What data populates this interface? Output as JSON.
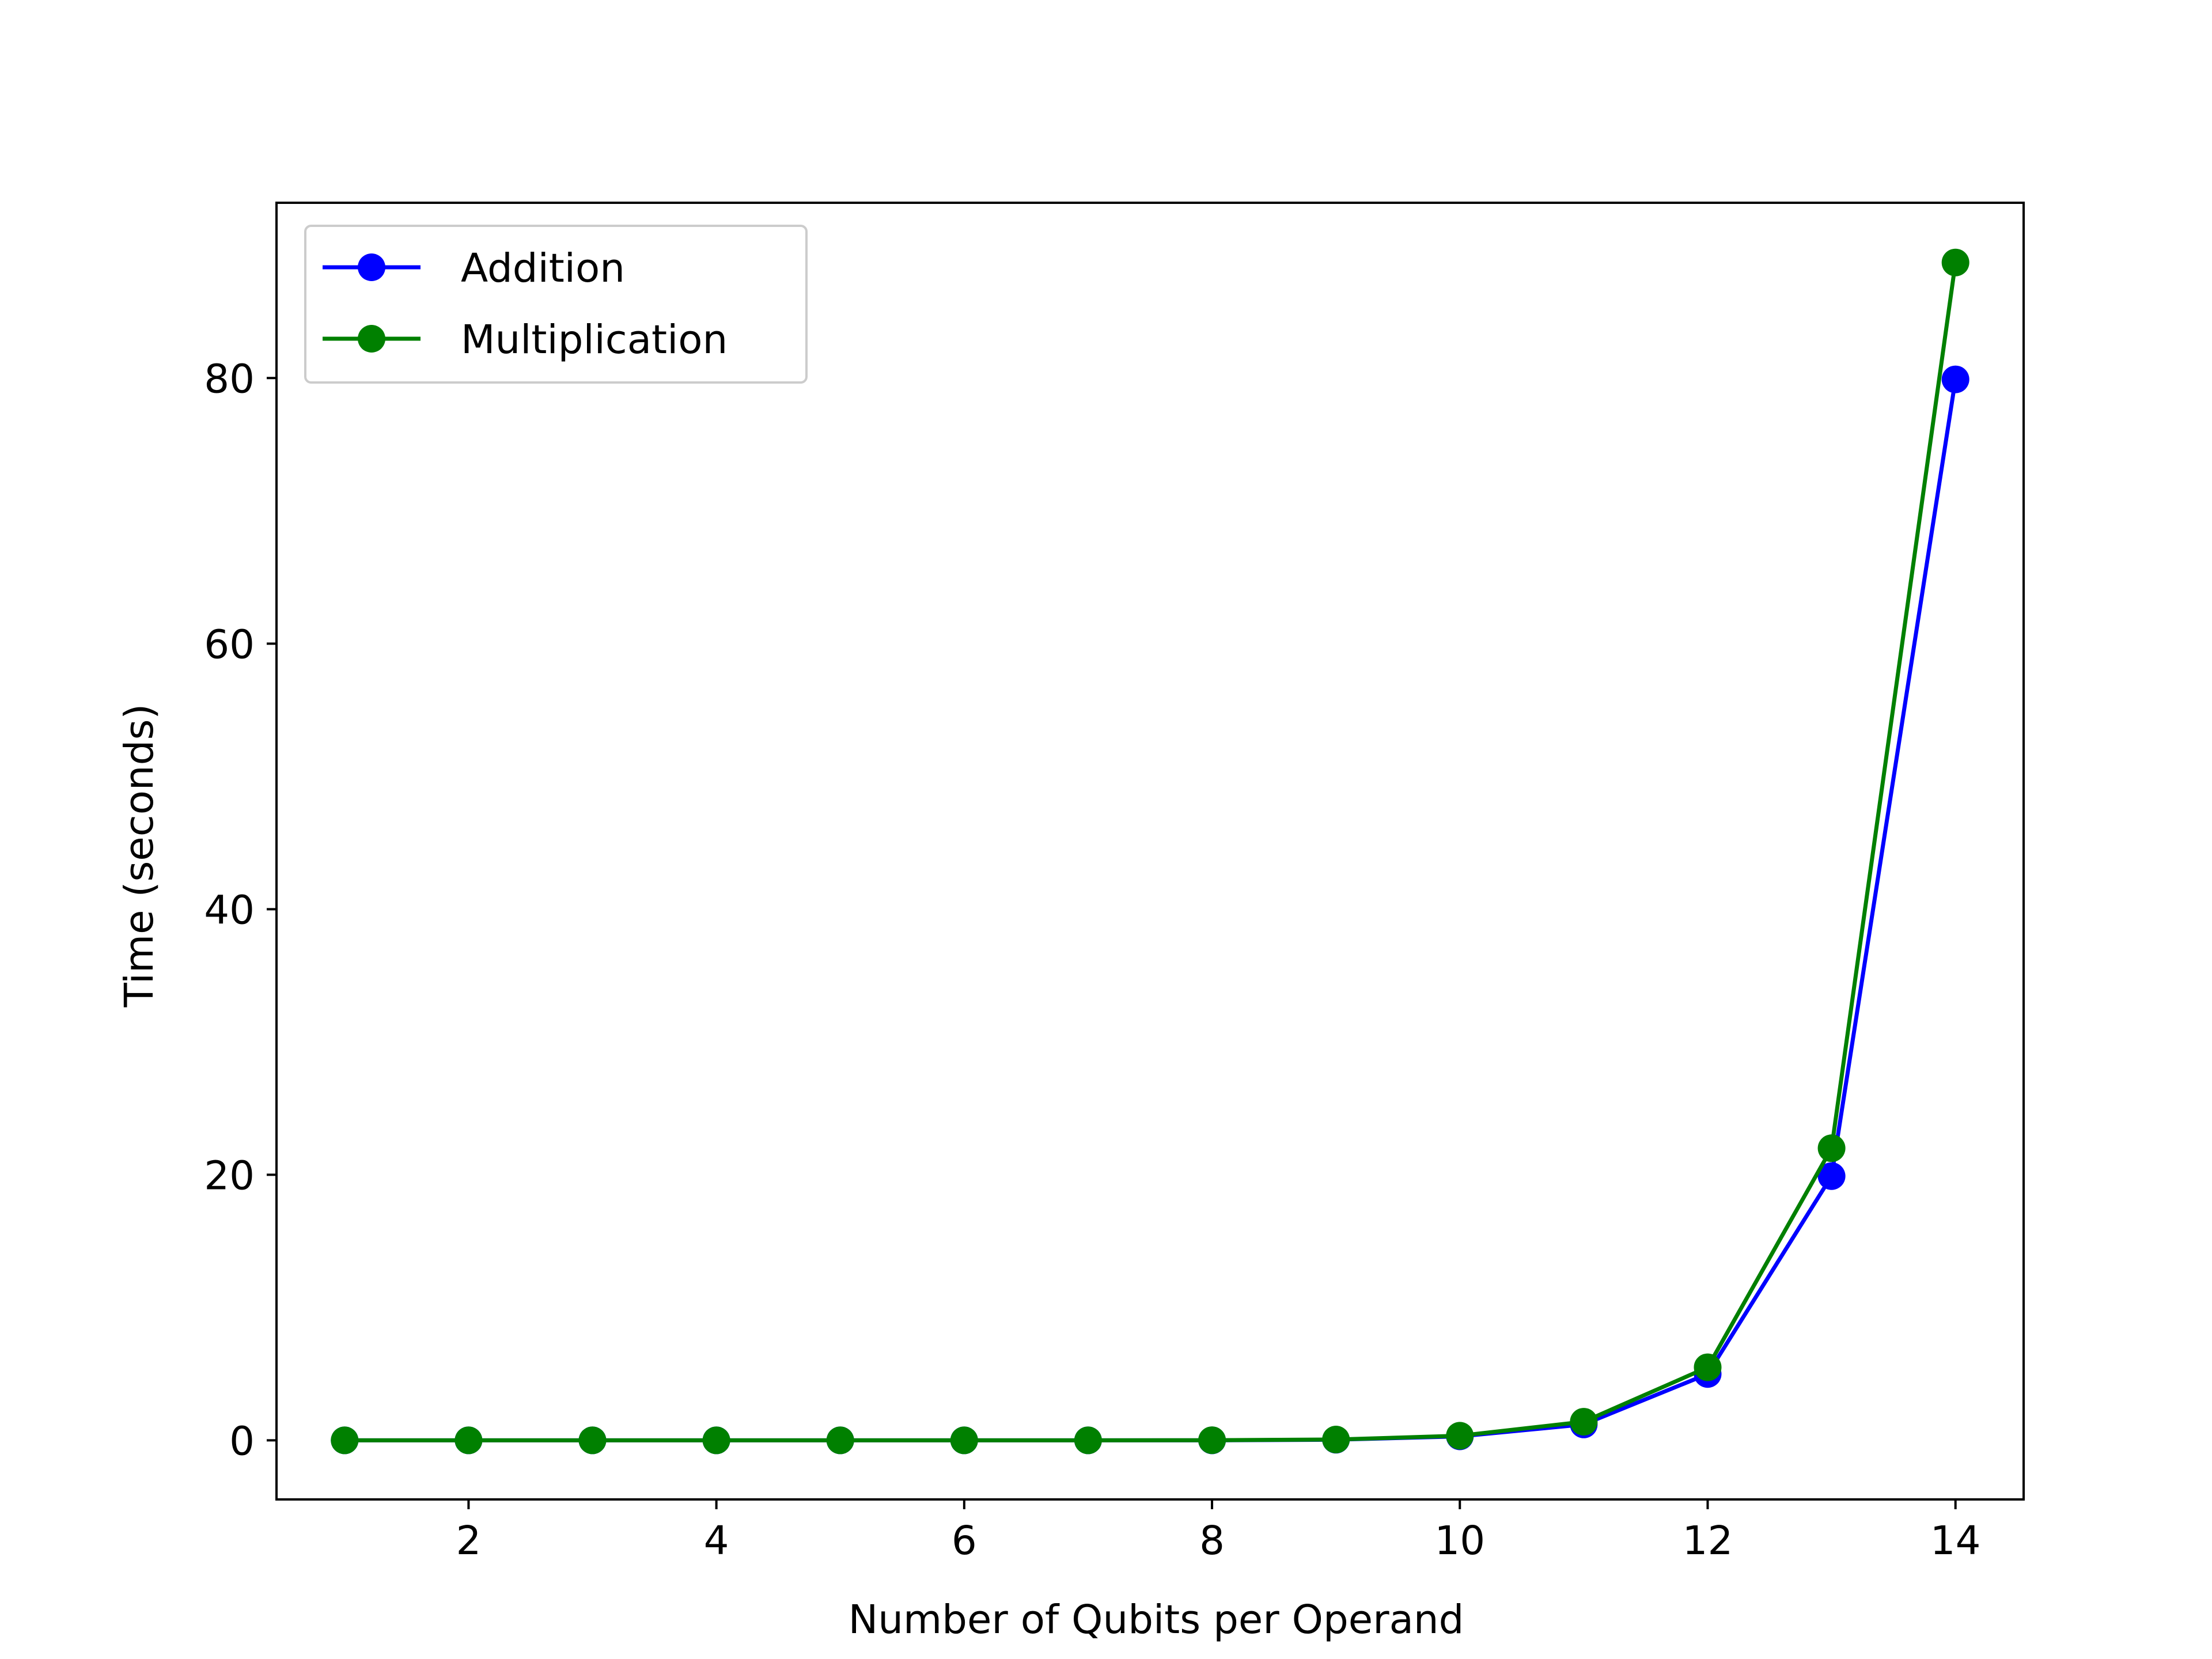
{
  "chart_data": {
    "type": "line",
    "title": "",
    "xlabel": "Number of Qubits per Operand",
    "ylabel": "Time (seconds)",
    "xlim": [
      0.45,
      14.55
    ],
    "ylim": [
      -4.45,
      93.2
    ],
    "xticks": [
      2,
      4,
      6,
      8,
      10,
      12,
      14
    ],
    "yticks": [
      0,
      20,
      40,
      60,
      80
    ],
    "grid": false,
    "legend_position": "upper-left",
    "x": [
      1,
      2,
      3,
      4,
      5,
      6,
      7,
      8,
      9,
      10,
      11,
      12,
      13,
      14
    ],
    "series": [
      {
        "name": "Addition",
        "color": "#0000ff",
        "marker": "circle",
        "values": [
          0,
          0,
          0,
          0,
          0,
          0,
          0,
          0,
          0.05,
          0.3,
          1.2,
          5.0,
          19.9,
          79.9
        ]
      },
      {
        "name": "Multiplication",
        "color": "#008000",
        "marker": "circle",
        "values": [
          0,
          0,
          0,
          0,
          0,
          0,
          0,
          0.01,
          0.06,
          0.35,
          1.4,
          5.5,
          22.0,
          88.7
        ]
      }
    ]
  }
}
